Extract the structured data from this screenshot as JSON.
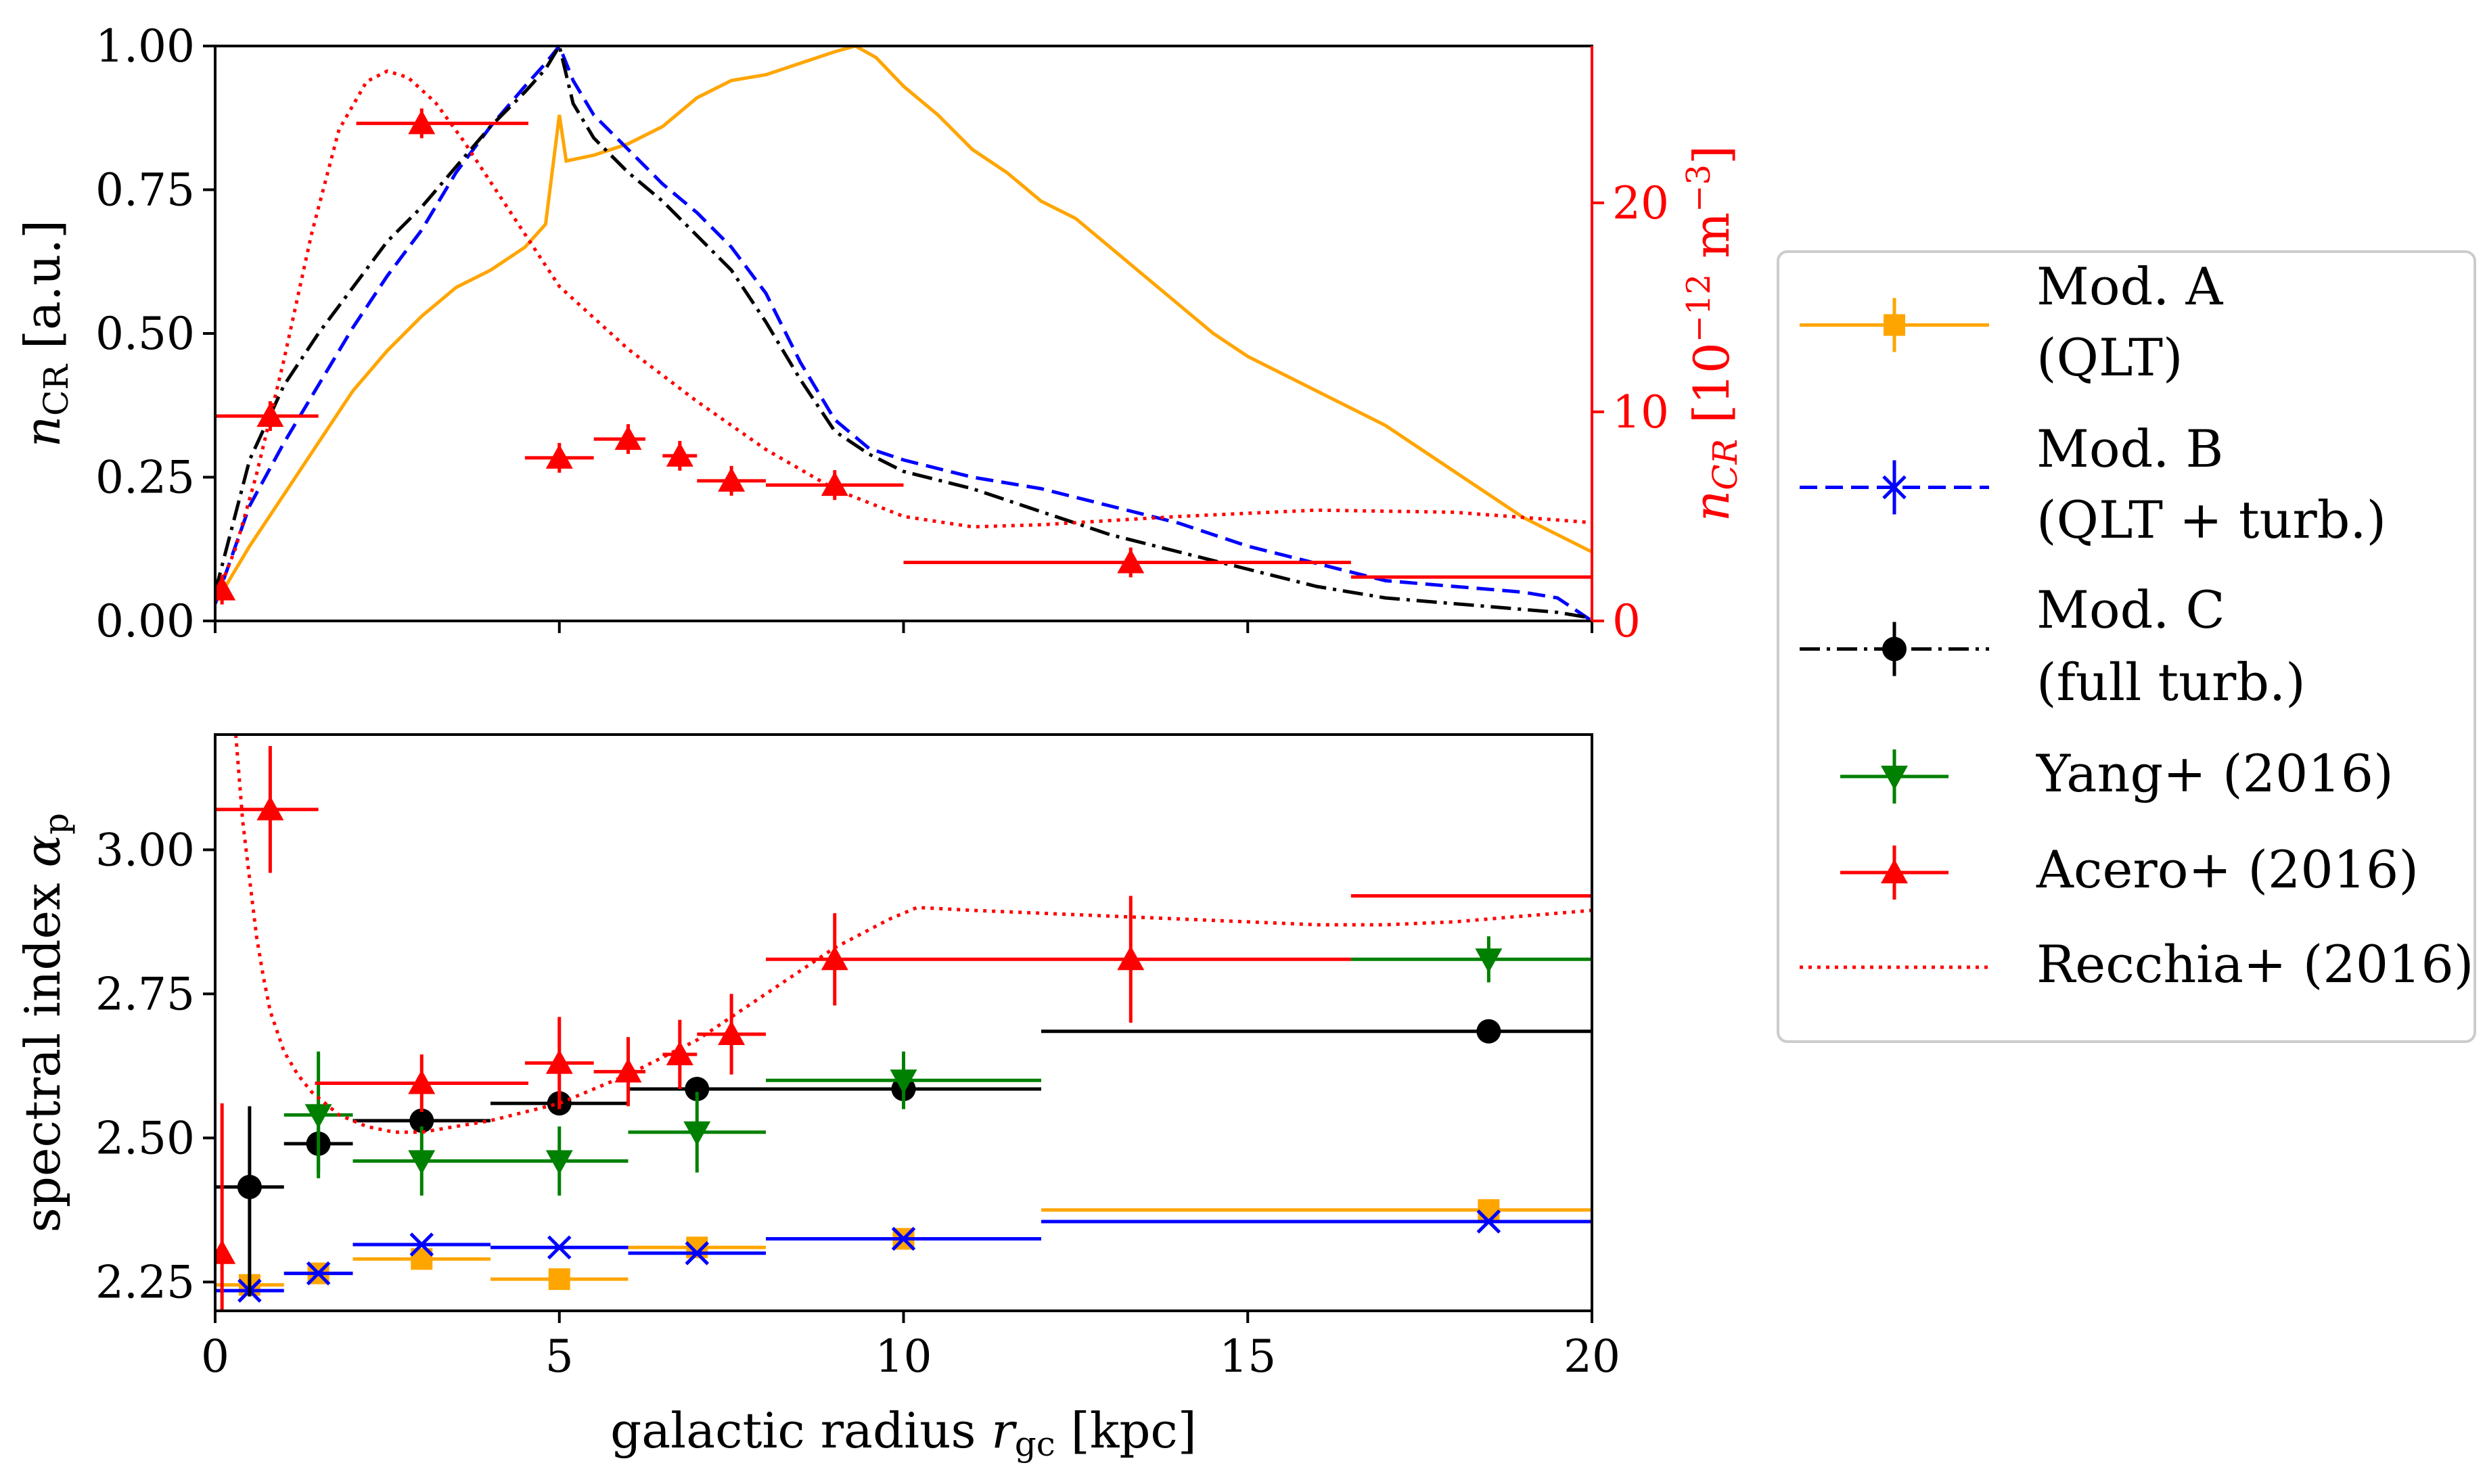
{
  "colors": {
    "modA": "#ffa500",
    "modB": "#0000ff",
    "modC": "#000000",
    "yang": "#008000",
    "acero": "#ff0000",
    "recchia": "#ff0000"
  },
  "chart_data": [
    {
      "type": "line",
      "id": "top",
      "xlim": [
        0,
        20
      ],
      "ylim": [
        0,
        1
      ],
      "ylabel_main": "n",
      "ylabel_sub": "CR",
      "ylabel_unit": " [a.u.]",
      "yticks": [
        "0.00",
        "0.25",
        "0.50",
        "0.75",
        "1.00"
      ],
      "ytick_values": [
        0,
        0.25,
        0.5,
        0.75,
        1.0
      ],
      "xticks": [
        0,
        5,
        10,
        15,
        20
      ],
      "right_axis": {
        "ylim": [
          0,
          27.5
        ],
        "ticks": [
          "0",
          "10",
          "20"
        ],
        "tick_values": [
          0,
          10,
          20
        ],
        "label_main": "n",
        "label_sub": "CR",
        "label_unit": " [10",
        "label_exp": "−12",
        "label_unit2": " m",
        "label_exp2": "−3",
        "label_close": "]"
      },
      "series": [
        {
          "name": "Mod. A (QLT)",
          "style": "solid",
          "color": "modA",
          "x": [
            0,
            0.5,
            1,
            1.5,
            2,
            2.5,
            3,
            3.5,
            4,
            4.5,
            4.8,
            5.0,
            5.1,
            5.5,
            6,
            6.5,
            7,
            7.5,
            8,
            8.5,
            9,
            9.3,
            9.6,
            10,
            10.5,
            11,
            11.5,
            12,
            12.5,
            13,
            13.5,
            14,
            14.5,
            15,
            15.5,
            16,
            16.5,
            17,
            17.5,
            18,
            18.5,
            19,
            19.5,
            20
          ],
          "y": [
            0.03,
            0.13,
            0.22,
            0.31,
            0.4,
            0.47,
            0.53,
            0.58,
            0.61,
            0.65,
            0.69,
            0.88,
            0.8,
            0.81,
            0.83,
            0.86,
            0.91,
            0.94,
            0.95,
            0.97,
            0.99,
            1.0,
            0.98,
            0.93,
            0.88,
            0.82,
            0.78,
            0.73,
            0.7,
            0.65,
            0.6,
            0.55,
            0.5,
            0.46,
            0.43,
            0.4,
            0.37,
            0.34,
            0.3,
            0.26,
            0.22,
            0.18,
            0.15,
            0.12
          ]
        },
        {
          "name": "Mod. B (QLT + turb.)",
          "style": "dashed",
          "color": "modB",
          "x": [
            0,
            0.5,
            1,
            1.5,
            2,
            2.5,
            3,
            3.5,
            4,
            4.5,
            4.8,
            5.0,
            5.2,
            5.5,
            6,
            6.5,
            7,
            7.5,
            8,
            8.5,
            9,
            9.5,
            10,
            11,
            12,
            13,
            14,
            15,
            16,
            17,
            18,
            19,
            19.5,
            20
          ],
          "y": [
            0.03,
            0.2,
            0.31,
            0.41,
            0.51,
            0.6,
            0.68,
            0.78,
            0.86,
            0.93,
            0.97,
            1.0,
            0.94,
            0.88,
            0.82,
            0.76,
            0.71,
            0.65,
            0.57,
            0.45,
            0.35,
            0.3,
            0.28,
            0.25,
            0.23,
            0.2,
            0.17,
            0.13,
            0.1,
            0.07,
            0.06,
            0.05,
            0.04,
            0.0
          ]
        },
        {
          "name": "Mod. C (full turb.)",
          "style": "dashdot",
          "color": "modC",
          "x": [
            0,
            0.5,
            1,
            1.5,
            2,
            2.5,
            3,
            3.5,
            4,
            4.5,
            4.8,
            5.0,
            5.2,
            5.5,
            6,
            6.5,
            7,
            7.5,
            8,
            8.5,
            9,
            9.5,
            10,
            11,
            12,
            13,
            14,
            15,
            16,
            17,
            18,
            19,
            19.5,
            20
          ],
          "y": [
            0.05,
            0.28,
            0.41,
            0.5,
            0.58,
            0.66,
            0.72,
            0.79,
            0.86,
            0.92,
            0.96,
            1.0,
            0.9,
            0.84,
            0.78,
            0.73,
            0.67,
            0.61,
            0.52,
            0.42,
            0.33,
            0.29,
            0.26,
            0.23,
            0.19,
            0.15,
            0.12,
            0.09,
            0.06,
            0.04,
            0.03,
            0.02,
            0.015,
            0.005
          ]
        },
        {
          "name": "Recchia+ (2016)",
          "style": "dotted",
          "color": "recchia",
          "axis": "right",
          "x": [
            0,
            0.3,
            0.6,
            1.0,
            1.4,
            1.8,
            2.2,
            2.5,
            2.8,
            3.2,
            3.6,
            4.0,
            4.5,
            5.0,
            6,
            7,
            8,
            9,
            10,
            11,
            12,
            13,
            14,
            16,
            18,
            20
          ],
          "y": [
            1.0,
            3.5,
            7.0,
            12.5,
            18.5,
            23.5,
            25.8,
            26.3,
            26.0,
            24.8,
            23.0,
            21.0,
            18.5,
            16.0,
            13.0,
            10.5,
            8.2,
            6.3,
            5.0,
            4.5,
            4.6,
            4.8,
            5.0,
            5.3,
            5.2,
            4.7
          ]
        }
      ],
      "acero_points": {
        "name": "Acero+ (2016)",
        "color": "acero",
        "points": [
          {
            "x": 0.1,
            "y": 1.5,
            "xerr": [
              0.1,
              0.1
            ]
          },
          {
            "x": 0.8,
            "y": 9.8,
            "xerr": [
              0.8,
              0.7
            ]
          },
          {
            "x": 3.0,
            "y": 23.8,
            "xerr": [
              0.95,
              1.55
            ]
          },
          {
            "x": 5.0,
            "y": 7.8,
            "xerr": [
              0.5,
              0.5
            ]
          },
          {
            "x": 6.0,
            "y": 8.7,
            "xerr": [
              0.5,
              0.25
            ]
          },
          {
            "x": 6.75,
            "y": 7.9,
            "xerr": [
              0.25,
              0.25
            ]
          },
          {
            "x": 7.5,
            "y": 6.7,
            "xerr": [
              0.5,
              0.5
            ]
          },
          {
            "x": 9.0,
            "y": 6.5,
            "xerr": [
              1.0,
              1.0
            ]
          },
          {
            "x": 13.3,
            "y": 2.8,
            "xerr": [
              3.3,
              3.2
            ]
          },
          {
            "x": 18.5,
            "y": 2.1,
            "xerr": [
              2.0,
              1.5
            ],
            "nomarker": true
          }
        ]
      }
    },
    {
      "type": "scatter",
      "id": "bottom",
      "xlim": [
        0,
        20
      ],
      "ylim": [
        2.2,
        3.2
      ],
      "xlabel_main": "galactic radius ",
      "xlabel_var": "r",
      "xlabel_sub": "gc",
      "xlabel_unit": " [kpc]",
      "ylabel_main": "spectral index ",
      "ylabel_var": "α",
      "ylabel_sub": "p",
      "xticks": [
        "0",
        "5",
        "10",
        "15",
        "20"
      ],
      "xtick_values": [
        0,
        5,
        10,
        15,
        20
      ],
      "yticks": [
        "2.25",
        "2.50",
        "2.75",
        "3.00"
      ],
      "ytick_values": [
        2.25,
        2.5,
        2.75,
        3.0
      ],
      "series": [
        {
          "name": "Mod. A (QLT)",
          "color": "modA",
          "marker": "square",
          "points": [
            {
              "x": 0.5,
              "y": 2.245,
              "xerr": [
                0.5,
                0.5
              ]
            },
            {
              "x": 1.5,
              "y": 2.265,
              "xerr": [
                0.5,
                0.5
              ]
            },
            {
              "x": 3.0,
              "y": 2.29,
              "xerr": [
                1.0,
                1.0
              ]
            },
            {
              "x": 5.0,
              "y": 2.255,
              "xerr": [
                1.0,
                1.0
              ]
            },
            {
              "x": 7.0,
              "y": 2.31,
              "xerr": [
                1.0,
                1.0
              ]
            },
            {
              "x": 10.0,
              "y": 2.325,
              "xerr": [
                2.0,
                2.0
              ]
            },
            {
              "x": 18.5,
              "y": 2.375,
              "xerr": [
                6.5,
                1.5
              ]
            }
          ]
        },
        {
          "name": "Mod. B (QLT + turb.)",
          "color": "modB",
          "marker": "x",
          "points": [
            {
              "x": 0.5,
              "y": 2.235,
              "xerr": [
                0.5,
                0.5
              ]
            },
            {
              "x": 1.5,
              "y": 2.265,
              "xerr": [
                0.5,
                0.5
              ]
            },
            {
              "x": 3.0,
              "y": 2.315,
              "xerr": [
                1.0,
                1.0
              ]
            },
            {
              "x": 5.0,
              "y": 2.31,
              "xerr": [
                1.0,
                1.0
              ]
            },
            {
              "x": 7.0,
              "y": 2.3,
              "xerr": [
                1.0,
                1.0
              ]
            },
            {
              "x": 10.0,
              "y": 2.325,
              "xerr": [
                2.0,
                2.0
              ]
            },
            {
              "x": 18.5,
              "y": 2.355,
              "xerr": [
                6.5,
                1.5
              ]
            }
          ]
        },
        {
          "name": "Mod. C (full turb.)",
          "color": "modC",
          "marker": "circle",
          "points": [
            {
              "x": 0.5,
              "y": 2.415,
              "xerr": [
                0.5,
                0.5
              ],
              "yerr": [
                0.19,
                0.14
              ]
            },
            {
              "x": 1.5,
              "y": 2.49,
              "xerr": [
                0.5,
                0.5
              ],
              "yerr": [
                0.05,
                0.05
              ]
            },
            {
              "x": 3.0,
              "y": 2.53,
              "xerr": [
                1.0,
                1.0
              ],
              "yerr": [
                0.02,
                0.02
              ]
            },
            {
              "x": 5.0,
              "y": 2.56,
              "xerr": [
                1.0,
                1.0
              ],
              "yerr": [
                0.02,
                0.02
              ]
            },
            {
              "x": 7.0,
              "y": 2.585,
              "xerr": [
                1.0,
                1.0
              ],
              "yerr": [
                0.02,
                0.02
              ]
            },
            {
              "x": 10.0,
              "y": 2.585,
              "xerr": [
                2.0,
                2.0
              ],
              "yerr": [
                0.02,
                0.02
              ]
            },
            {
              "x": 18.5,
              "y": 2.685,
              "xerr": [
                6.5,
                1.5
              ],
              "yerr": [
                0.02,
                0.02
              ]
            }
          ]
        },
        {
          "name": "Yang+ (2016)",
          "color": "yang",
          "marker": "tri-down",
          "points": [
            {
              "x": 1.5,
              "y": 2.54,
              "xerr": [
                0.5,
                0.5
              ],
              "yerr": [
                0.11,
                0.11
              ]
            },
            {
              "x": 3.0,
              "y": 2.46,
              "xerr": [
                1.0,
                1.0
              ],
              "yerr": [
                0.06,
                0.06
              ]
            },
            {
              "x": 5.0,
              "y": 2.46,
              "xerr": [
                1.0,
                1.0
              ],
              "yerr": [
                0.06,
                0.06
              ]
            },
            {
              "x": 7.0,
              "y": 2.51,
              "xerr": [
                1.0,
                1.0
              ],
              "yerr": [
                0.07,
                0.07
              ]
            },
            {
              "x": 10.0,
              "y": 2.6,
              "xerr": [
                2.0,
                2.0
              ],
              "yerr": [
                0.05,
                0.05
              ]
            },
            {
              "x": 18.5,
              "y": 2.81,
              "xerr": [
                2.0,
                1.5
              ],
              "yerr": [
                0.04,
                0.04
              ]
            }
          ]
        },
        {
          "name": "Acero+ (2016)",
          "color": "acero",
          "marker": "tri-up",
          "points": [
            {
              "x": 0.1,
              "y": 2.3,
              "xerr": [
                0.1,
                0.1
              ],
              "yerr": [
                0.28,
                0.26
              ]
            },
            {
              "x": 0.8,
              "y": 3.07,
              "xerr": [
                0.8,
                0.7
              ],
              "yerr": [
                0.11,
                0.11
              ]
            },
            {
              "x": 3.0,
              "y": 2.595,
              "xerr": [
                1.55,
                1.55
              ],
              "yerr": [
                0.05,
                0.05
              ]
            },
            {
              "x": 5.0,
              "y": 2.63,
              "xerr": [
                0.5,
                0.5
              ],
              "yerr": [
                0.08,
                0.08
              ]
            },
            {
              "x": 6.0,
              "y": 2.615,
              "xerr": [
                0.5,
                0.25
              ],
              "yerr": [
                0.06,
                0.06
              ]
            },
            {
              "x": 6.75,
              "y": 2.645,
              "xerr": [
                0.25,
                0.25
              ],
              "yerr": [
                0.06,
                0.06
              ]
            },
            {
              "x": 7.5,
              "y": 2.68,
              "xerr": [
                0.5,
                0.5
              ],
              "yerr": [
                0.07,
                0.07
              ]
            },
            {
              "x": 9.0,
              "y": 2.81,
              "xerr": [
                1.0,
                1.0
              ],
              "yerr": [
                0.08,
                0.08
              ]
            },
            {
              "x": 13.3,
              "y": 2.81,
              "xerr": [
                3.3,
                3.2
              ],
              "yerr": [
                0.11,
                0.11
              ]
            },
            {
              "x": 18.5,
              "y": 2.92,
              "xerr": [
                2.0,
                1.5
              ],
              "nomarker": true
            }
          ]
        },
        {
          "name": "Recchia+ (2016)",
          "color": "recchia",
          "style": "dotted",
          "line": true,
          "x": [
            0.3,
            0.4,
            0.5,
            0.6,
            0.7,
            0.8,
            1.0,
            1.2,
            1.4,
            1.8,
            2.2,
            2.6,
            3.0,
            4.0,
            5.0,
            6.0,
            7.0,
            8.0,
            9.0,
            9.8,
            10.2,
            11,
            12,
            13,
            14,
            15,
            16,
            17,
            18,
            19,
            20
          ],
          "y": [
            3.2,
            3.05,
            2.95,
            2.85,
            2.78,
            2.72,
            2.65,
            2.61,
            2.58,
            2.54,
            2.52,
            2.51,
            2.51,
            2.53,
            2.56,
            2.61,
            2.67,
            2.75,
            2.83,
            2.88,
            2.9,
            2.895,
            2.89,
            2.885,
            2.88,
            2.875,
            2.87,
            2.87,
            2.875,
            2.885,
            2.895
          ]
        }
      ]
    }
  ],
  "legend": {
    "entries": [
      {
        "line1": "Mod. A",
        "line2": "(QLT)",
        "color": "modA",
        "style": "solid",
        "marker": "square"
      },
      {
        "line1": "Mod. B",
        "line2": "(QLT + turb.)",
        "color": "modB",
        "style": "dashed",
        "marker": "x"
      },
      {
        "line1": "Mod. C",
        "line2": "(full turb.)",
        "color": "modC",
        "style": "dashdot",
        "marker": "circle"
      },
      {
        "line1": "Yang+ (2016)",
        "line2": "",
        "color": "yang",
        "style": "none",
        "marker": "tri-down"
      },
      {
        "line1": "Acero+ (2016)",
        "line2": "",
        "color": "acero",
        "style": "none",
        "marker": "tri-up"
      },
      {
        "line1": "Recchia+ (2016)",
        "line2": "",
        "color": "recchia",
        "style": "dotted",
        "marker": "none"
      }
    ]
  }
}
